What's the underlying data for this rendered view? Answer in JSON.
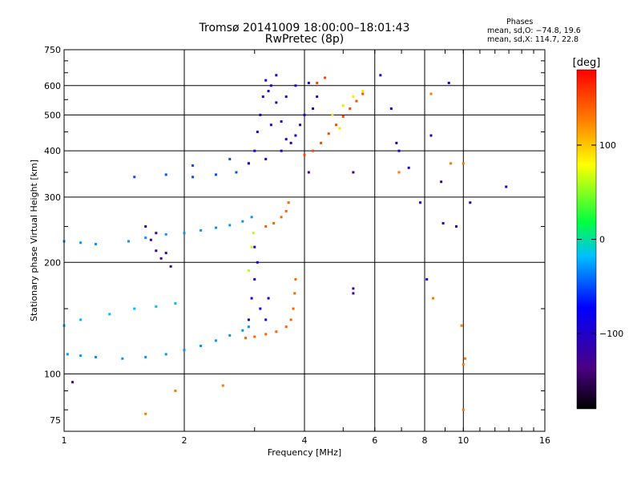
{
  "header": {
    "title": "Tromsø 20141009 18:00:00–18:01:43",
    "subtitle": "RwPretec (8p)"
  },
  "phase_info": {
    "heading": "Phases",
    "line_o": "mean, sd,O: −74.8, 19.6",
    "line_x": "mean, sd,X: 114.7, 22.8"
  },
  "colorbar": {
    "unit": "[deg]",
    "min": -180,
    "max": 180,
    "ticks": [
      "100",
      "0",
      "−100"
    ],
    "tick_values": [
      100,
      0,
      -100
    ]
  },
  "chart_data": {
    "type": "scatter",
    "xlabel": "Frequency [MHz]",
    "ylabel": "Stationary phase Virtual Height [km]",
    "x_scale": "log",
    "y_scale": "log",
    "xlim": [
      1,
      16
    ],
    "ylim": [
      70,
      750
    ],
    "x_ticks": [
      1,
      2,
      4,
      6,
      8,
      10,
      16
    ],
    "x_tick_labels": [
      "1",
      "2",
      "4",
      "6",
      "8",
      "10",
      "16"
    ],
    "y_ticks": [
      75,
      100,
      200,
      300,
      400,
      500,
      600,
      750
    ],
    "y_tick_labels": [
      "75",
      "100",
      "200",
      "300",
      "400",
      "500",
      "600",
      "750"
    ],
    "grid_x": [
      2,
      4,
      6,
      8,
      10
    ],
    "grid_y": [
      100,
      200,
      300,
      400,
      500,
      600
    ],
    "color_scale": "rainbow",
    "traces": [
      {
        "name": "",
        "phase": -30,
        "points": [
          [
            1.02,
            113
          ],
          [
            1.1,
            112
          ],
          [
            1.2,
            111
          ],
          [
            1.4,
            110
          ],
          [
            1.6,
            111
          ],
          [
            1.8,
            113
          ],
          [
            2.0,
            116
          ],
          [
            2.2,
            119
          ],
          [
            2.4,
            123
          ],
          [
            2.6,
            127
          ],
          [
            2.8,
            131
          ],
          [
            2.9,
            134
          ]
        ]
      },
      {
        "name": "",
        "phase": -20,
        "points": [
          [
            1.0,
            135
          ],
          [
            1.1,
            140
          ],
          [
            1.3,
            145
          ],
          [
            1.5,
            150
          ],
          [
            1.7,
            152
          ],
          [
            1.9,
            155
          ]
        ]
      },
      {
        "name": "",
        "phase": 140,
        "points": [
          [
            2.85,
            125
          ],
          [
            3.0,
            126
          ],
          [
            3.2,
            128
          ],
          [
            3.4,
            130
          ],
          [
            3.6,
            134
          ],
          [
            3.7,
            140
          ],
          [
            3.75,
            150
          ],
          [
            3.78,
            165
          ],
          [
            3.8,
            180
          ]
        ]
      },
      {
        "name": "",
        "phase": -90,
        "points": [
          [
            2.9,
            140
          ],
          [
            2.95,
            160
          ],
          [
            3.0,
            180
          ],
          [
            3.05,
            200
          ],
          [
            3.0,
            220
          ],
          [
            3.1,
            150
          ],
          [
            3.2,
            140
          ],
          [
            3.25,
            160
          ]
        ]
      },
      {
        "name": "",
        "phase": 60,
        "points": [
          [
            2.9,
            190
          ],
          [
            2.95,
            220
          ],
          [
            2.98,
            240
          ]
        ]
      },
      {
        "name": "",
        "phase": -30,
        "points": [
          [
            1.0,
            228
          ],
          [
            1.1,
            226
          ],
          [
            1.2,
            224
          ],
          [
            1.45,
            228
          ],
          [
            1.6,
            233
          ],
          [
            1.8,
            238
          ],
          [
            2.0,
            240
          ],
          [
            2.2,
            244
          ],
          [
            2.4,
            248
          ],
          [
            2.6,
            252
          ],
          [
            2.8,
            258
          ],
          [
            2.95,
            265
          ]
        ]
      },
      {
        "name": "",
        "phase": 140,
        "points": [
          [
            3.2,
            250
          ],
          [
            3.35,
            255
          ],
          [
            3.5,
            265
          ],
          [
            3.6,
            275
          ],
          [
            3.65,
            290
          ]
        ]
      },
      {
        "name": "",
        "phase": -120,
        "points": [
          [
            1.7,
            215
          ],
          [
            1.75,
            205
          ],
          [
            1.8,
            212
          ],
          [
            1.85,
            195
          ],
          [
            1.65,
            230
          ],
          [
            1.6,
            250
          ],
          [
            1.7,
            240
          ]
        ]
      },
      {
        "name": "",
        "phase": -50,
        "points": [
          [
            1.5,
            340
          ],
          [
            1.8,
            345
          ],
          [
            2.1,
            340
          ],
          [
            2.4,
            345
          ],
          [
            2.7,
            350
          ],
          [
            2.9,
            370
          ],
          [
            2.1,
            365
          ],
          [
            2.6,
            380
          ]
        ]
      },
      {
        "name": "",
        "phase": -95,
        "points": [
          [
            2.9,
            370
          ],
          [
            3.0,
            400
          ],
          [
            3.05,
            450
          ],
          [
            3.1,
            500
          ],
          [
            3.15,
            560
          ],
          [
            3.2,
            620
          ],
          [
            3.3,
            600
          ],
          [
            3.4,
            540
          ],
          [
            3.5,
            480
          ],
          [
            3.6,
            430
          ],
          [
            3.7,
            420
          ],
          [
            3.8,
            440
          ],
          [
            3.9,
            470
          ],
          [
            4.0,
            500
          ],
          [
            3.3,
            470
          ],
          [
            3.5,
            400
          ],
          [
            3.2,
            380
          ],
          [
            3.6,
            560
          ],
          [
            3.8,
            600
          ],
          [
            4.1,
            610
          ],
          [
            4.3,
            560
          ],
          [
            4.2,
            520
          ],
          [
            3.4,
            640
          ],
          [
            3.25,
            580
          ]
        ]
      },
      {
        "name": "",
        "phase": 150,
        "points": [
          [
            4.0,
            390
          ],
          [
            4.2,
            400
          ],
          [
            4.4,
            420
          ],
          [
            4.6,
            445
          ],
          [
            4.8,
            470
          ],
          [
            5.0,
            495
          ],
          [
            5.2,
            520
          ],
          [
            5.4,
            545
          ],
          [
            5.6,
            570
          ],
          [
            4.5,
            630
          ],
          [
            4.3,
            610
          ]
        ]
      },
      {
        "name": "",
        "phase": 90,
        "points": [
          [
            4.7,
            500
          ],
          [
            5.0,
            530
          ],
          [
            5.3,
            560
          ],
          [
            5.6,
            580
          ],
          [
            4.9,
            460
          ]
        ]
      },
      {
        "name": "",
        "phase": -100,
        "points": [
          [
            6.2,
            640
          ],
          [
            6.6,
            520
          ],
          [
            6.8,
            420
          ],
          [
            7.3,
            360
          ],
          [
            7.8,
            290
          ],
          [
            8.3,
            440
          ],
          [
            8.8,
            330
          ],
          [
            9.2,
            610
          ],
          [
            9.6,
            250
          ],
          [
            10.4,
            290
          ],
          [
            12.8,
            320
          ],
          [
            6.9,
            400
          ],
          [
            8.1,
            180
          ],
          [
            8.9,
            255
          ]
        ]
      },
      {
        "name": "",
        "phase": 130,
        "points": [
          [
            6.9,
            350
          ],
          [
            8.3,
            570
          ],
          [
            9.3,
            370
          ],
          [
            10.0,
            370
          ],
          [
            10.1,
            110
          ],
          [
            10.0,
            106
          ],
          [
            10.0,
            80
          ],
          [
            9.9,
            135
          ],
          [
            8.4,
            160
          ],
          [
            1.6,
            78
          ],
          [
            1.9,
            90
          ],
          [
            2.5,
            93
          ]
        ]
      },
      {
        "name": "",
        "phase": -130,
        "points": [
          [
            5.3,
            165
          ],
          [
            5.3,
            170
          ],
          [
            4.1,
            350
          ],
          [
            1.05,
            95
          ],
          [
            5.3,
            350
          ]
        ]
      }
    ]
  }
}
